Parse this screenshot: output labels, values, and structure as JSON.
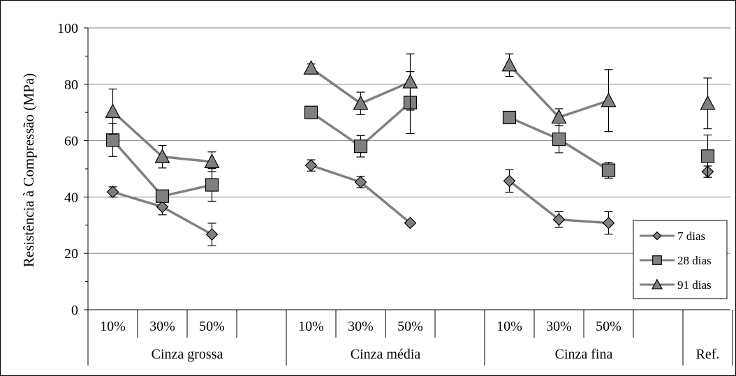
{
  "chart_data": {
    "type": "line",
    "ylabel": "Resistência à Compressão (MPa)",
    "ylim": [
      0,
      100
    ],
    "yticks": [
      0,
      20,
      40,
      60,
      80,
      100
    ],
    "grid": "horizontal",
    "legend_position": "bottom-right",
    "slots": [
      {
        "label": "10%",
        "group": 0
      },
      {
        "label": "30%",
        "group": 0
      },
      {
        "label": "50%",
        "group": 0
      },
      {
        "label": "",
        "group": 0
      },
      {
        "label": "10%",
        "group": 1
      },
      {
        "label": "30%",
        "group": 1
      },
      {
        "label": "50%",
        "group": 1
      },
      {
        "label": "",
        "group": 1
      },
      {
        "label": "10%",
        "group": 2
      },
      {
        "label": "30%",
        "group": 2
      },
      {
        "label": "50%",
        "group": 2
      },
      {
        "label": "",
        "group": 2
      },
      {
        "label": "",
        "group": 3
      }
    ],
    "groups": [
      "Cinza grossa",
      "Cinza média",
      "Cinza fina",
      "Ref."
    ],
    "series": [
      {
        "name": "7 dias",
        "marker": "diamond",
        "segments": [
          [
            0,
            1,
            2
          ],
          [
            4,
            5,
            6
          ],
          [
            8,
            9,
            10
          ],
          [
            12
          ]
        ],
        "points": [
          {
            "slot": 0,
            "y": 41.8,
            "err": 1.8
          },
          {
            "slot": 1,
            "y": 36.5,
            "err": 2.8
          },
          {
            "slot": 2,
            "y": 26.7,
            "err": 4.0
          },
          {
            "slot": 4,
            "y": 51.2,
            "err": 2.0
          },
          {
            "slot": 5,
            "y": 45.3,
            "err": 2.0
          },
          {
            "slot": 6,
            "y": 30.8,
            "err": 0
          },
          {
            "slot": 8,
            "y": 45.7,
            "err": 4.0
          },
          {
            "slot": 9,
            "y": 32.0,
            "err": 2.8
          },
          {
            "slot": 10,
            "y": 30.8,
            "err": 4.0
          },
          {
            "slot": 12,
            "y": 49.0,
            "err": 2.0
          }
        ]
      },
      {
        "name": "28 dias",
        "marker": "square",
        "segments": [
          [
            0,
            1,
            2
          ],
          [
            4,
            5,
            6
          ],
          [
            8,
            9,
            10
          ],
          [
            12
          ]
        ],
        "points": [
          {
            "slot": 0,
            "y": 60.2,
            "err": 5.8
          },
          {
            "slot": 1,
            "y": 40.3,
            "err": 0
          },
          {
            "slot": 2,
            "y": 44.3,
            "err": 5.8
          },
          {
            "slot": 4,
            "y": 70.0,
            "err": 0
          },
          {
            "slot": 5,
            "y": 58.0,
            "err": 3.8
          },
          {
            "slot": 6,
            "y": 73.5,
            "err": 11.0
          },
          {
            "slot": 8,
            "y": 68.2,
            "err": 0
          },
          {
            "slot": 9,
            "y": 60.5,
            "err": 4.8
          },
          {
            "slot": 10,
            "y": 49.5,
            "err": 2.8
          },
          {
            "slot": 12,
            "y": 54.5,
            "err": 7.5
          }
        ]
      },
      {
        "name": "91 dias",
        "marker": "triangle",
        "segments": [
          [
            0,
            1,
            2
          ],
          [
            4,
            5,
            6
          ],
          [
            8,
            9,
            10
          ],
          [
            12
          ]
        ],
        "points": [
          {
            "slot": 0,
            "y": 70.3,
            "err": 8.0
          },
          {
            "slot": 1,
            "y": 54.3,
            "err": 4.0
          },
          {
            "slot": 2,
            "y": 52.5,
            "err": 3.5
          },
          {
            "slot": 4,
            "y": 85.7,
            "err": 1.5
          },
          {
            "slot": 5,
            "y": 73.2,
            "err": 4.0
          },
          {
            "slot": 6,
            "y": 80.8,
            "err": 10.0
          },
          {
            "slot": 8,
            "y": 86.8,
            "err": 4.0
          },
          {
            "slot": 9,
            "y": 68.3,
            "err": 3.0
          },
          {
            "slot": 10,
            "y": 74.2,
            "err": 11.0
          },
          {
            "slot": 12,
            "y": 73.2,
            "err": 9.0
          }
        ]
      }
    ],
    "colors": {
      "marker_fill": "#808080",
      "line": "#808080",
      "grid": "#868686",
      "border": "#000000"
    }
  }
}
